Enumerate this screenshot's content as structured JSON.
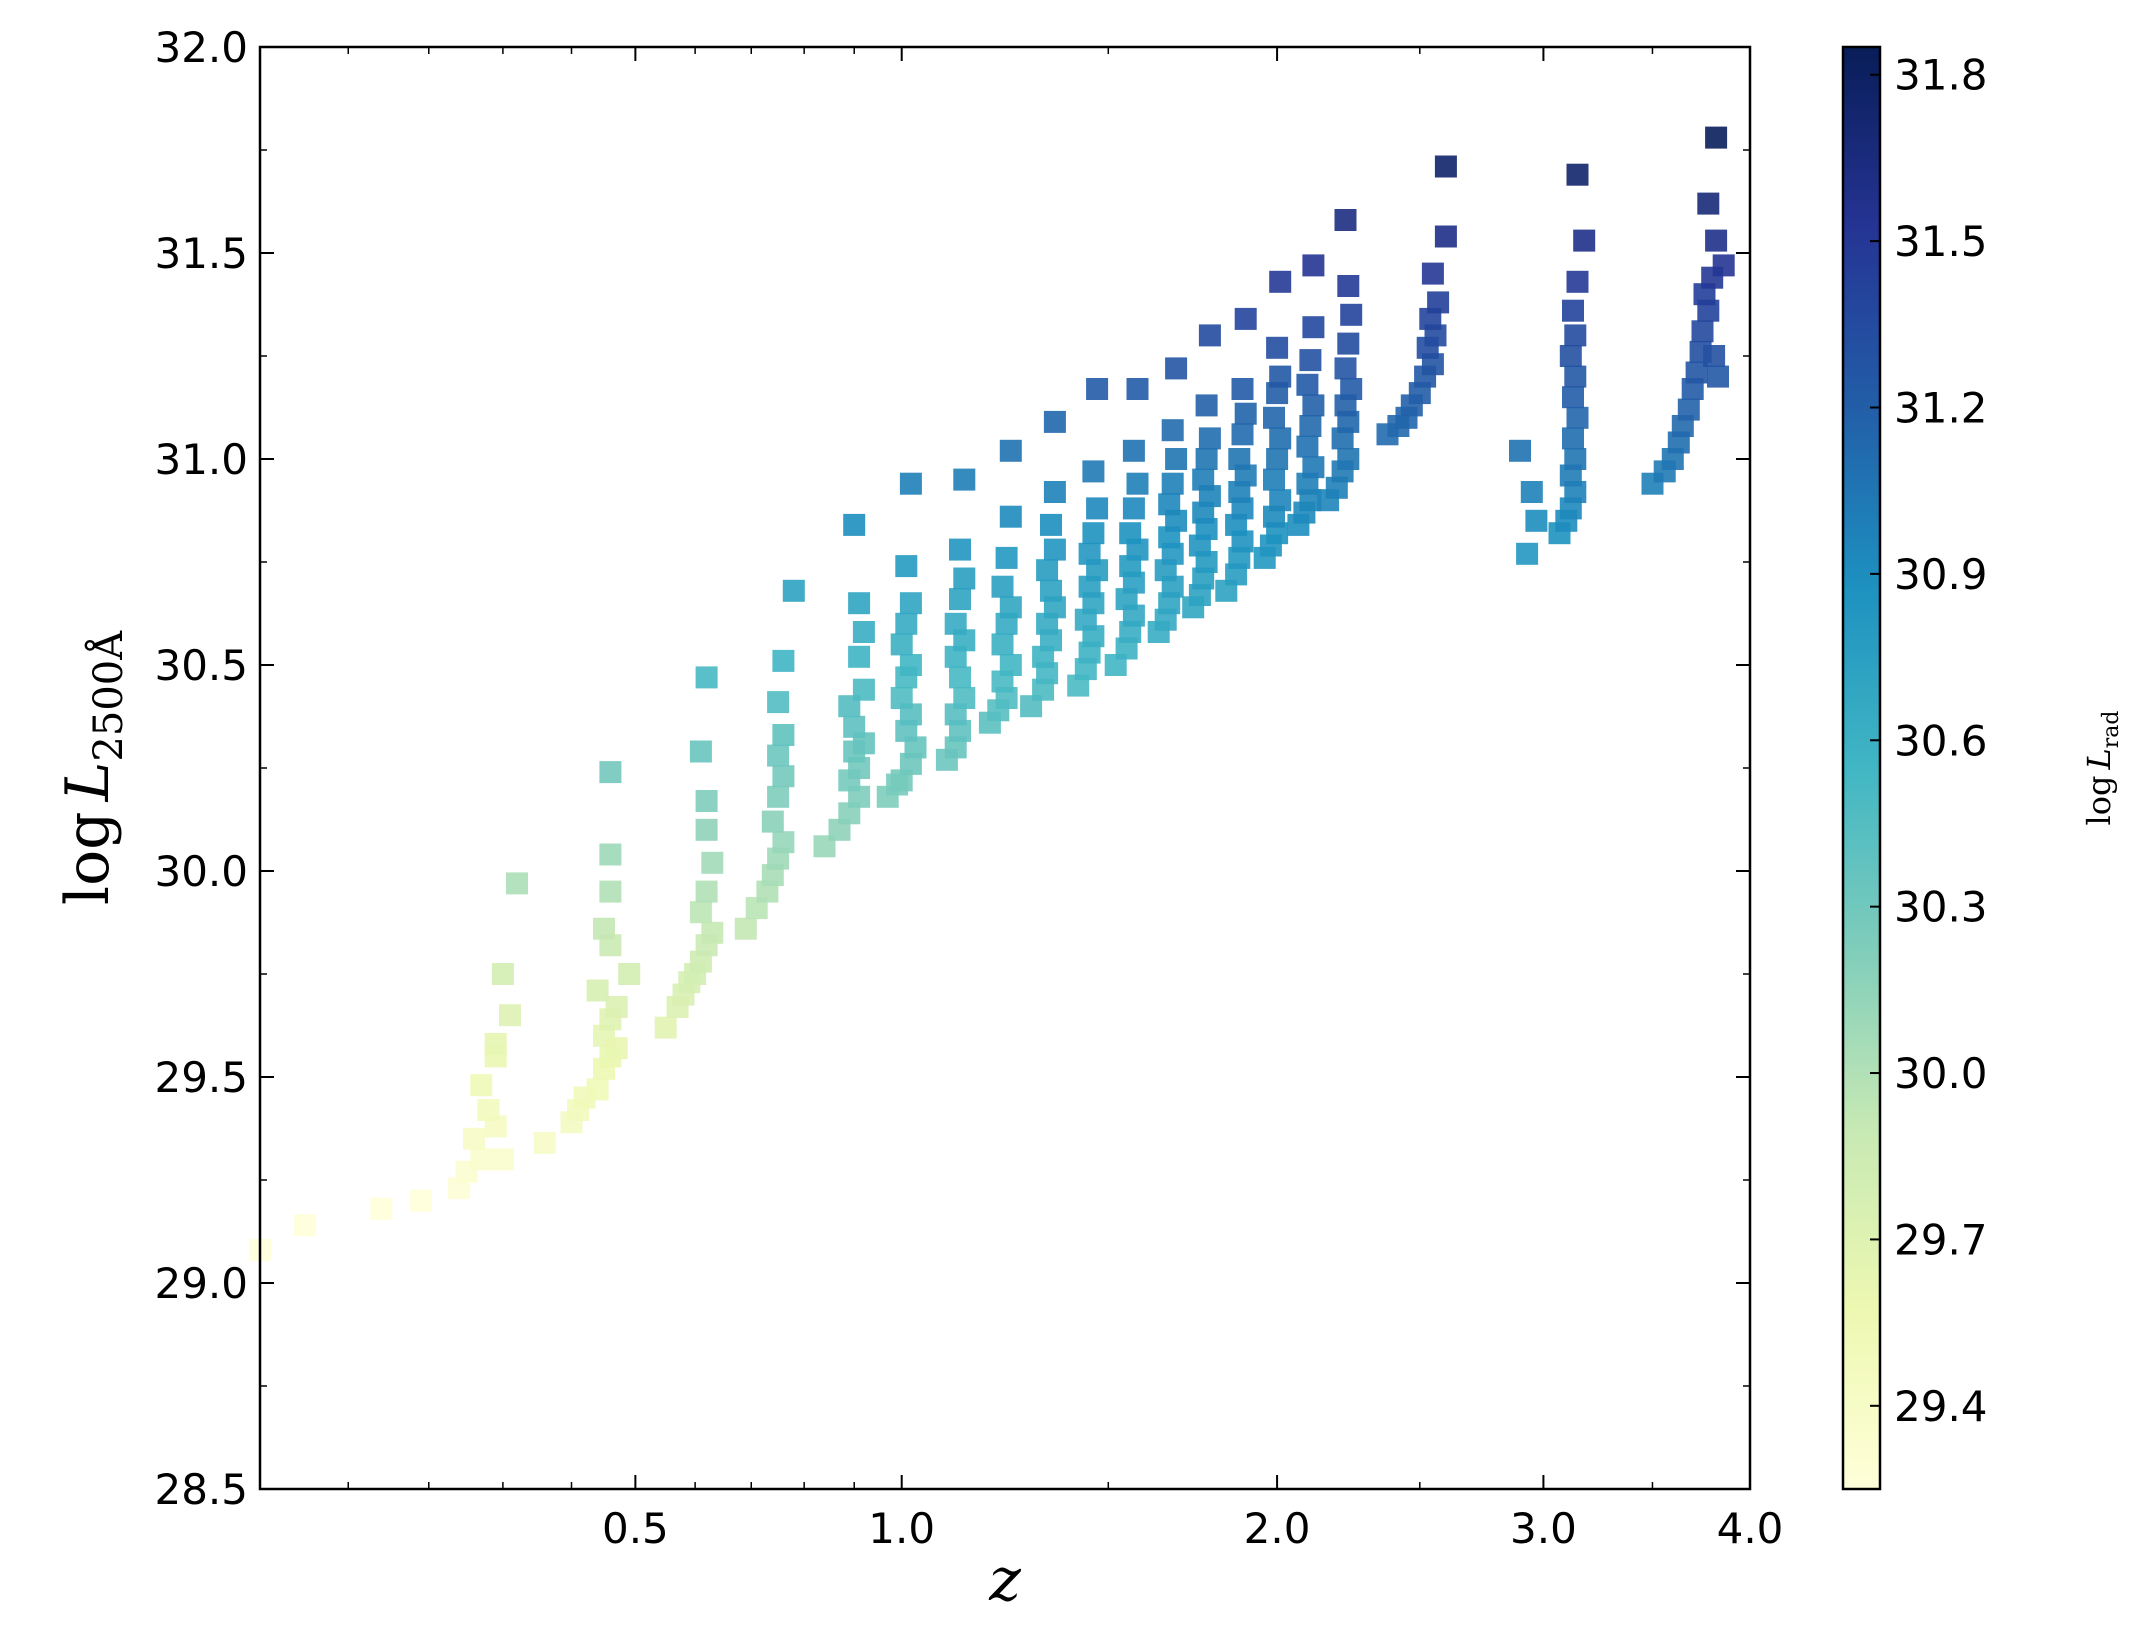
{
  "chart_data": {
    "type": "scatter",
    "marker": "square",
    "xlabel": "z",
    "ylabel": "log L_2500Å",
    "ylabel_parts": {
      "main": "log",
      "var": "L",
      "sub": "2500Å"
    },
    "colorbar_label_parts": {
      "main": "log",
      "var": "L",
      "sub": "rad"
    },
    "x_scale": "log(1+z)",
    "xlim": [
      0.0,
      4.0
    ],
    "ylim": [
      28.5,
      32.0
    ],
    "x_ticks": [
      0.5,
      1.0,
      2.0,
      3.0,
      4.0
    ],
    "x_tick_labels": [
      "0.5",
      "1.0",
      "2.0",
      "3.0",
      "4.0"
    ],
    "y_ticks": [
      28.5,
      29.0,
      29.5,
      30.0,
      30.5,
      31.0,
      31.5,
      32.0
    ],
    "y_tick_labels": [
      "28.5",
      "29.0",
      "29.5",
      "30.0",
      "30.5",
      "31.0",
      "31.5",
      "32.0"
    ],
    "colorbar": {
      "range": [
        29.25,
        31.85
      ],
      "ticks": [
        29.4,
        29.7,
        30.0,
        30.3,
        30.6,
        30.9,
        31.2,
        31.5,
        31.8
      ],
      "tick_labels": [
        "29.4",
        "29.7",
        "30.0",
        "30.3",
        "30.6",
        "30.9",
        "31.2",
        "31.5",
        "31.8"
      ],
      "colormap": [
        "#ffffd9",
        "#edf8b1",
        "#c7e9b4",
        "#7fcdbb",
        "#41b6c4",
        "#1d91c0",
        "#225ea8",
        "#253494",
        "#081d58"
      ]
    },
    "grid": false,
    "legend": "none",
    "points": [
      [
        0.0,
        29.08
      ],
      [
        0.05,
        29.14
      ],
      [
        0.14,
        29.18
      ],
      [
        0.19,
        29.2
      ],
      [
        0.24,
        29.23
      ],
      [
        0.25,
        29.27
      ],
      [
        0.27,
        29.3
      ],
      [
        0.26,
        29.35
      ],
      [
        0.29,
        29.38
      ],
      [
        0.28,
        29.42
      ],
      [
        0.27,
        29.48
      ],
      [
        0.29,
        29.55
      ],
      [
        0.29,
        29.58
      ],
      [
        0.31,
        29.65
      ],
      [
        0.3,
        29.75
      ],
      [
        0.32,
        29.97
      ],
      [
        0.3,
        29.3
      ],
      [
        0.36,
        29.34
      ],
      [
        0.4,
        29.39
      ],
      [
        0.41,
        29.42
      ],
      [
        0.42,
        29.45
      ],
      [
        0.44,
        29.47
      ],
      [
        0.45,
        29.52
      ],
      [
        0.46,
        29.55
      ],
      [
        0.45,
        29.6
      ],
      [
        0.47,
        29.57
      ],
      [
        0.46,
        29.64
      ],
      [
        0.47,
        29.67
      ],
      [
        0.44,
        29.71
      ],
      [
        0.49,
        29.75
      ],
      [
        0.46,
        29.82
      ],
      [
        0.45,
        29.86
      ],
      [
        0.46,
        29.95
      ],
      [
        0.46,
        30.04
      ],
      [
        0.46,
        30.24
      ],
      [
        0.55,
        29.62
      ],
      [
        0.57,
        29.67
      ],
      [
        0.58,
        29.7
      ],
      [
        0.59,
        29.73
      ],
      [
        0.6,
        29.75
      ],
      [
        0.61,
        29.78
      ],
      [
        0.62,
        29.82
      ],
      [
        0.63,
        29.85
      ],
      [
        0.61,
        29.9
      ],
      [
        0.62,
        29.95
      ],
      [
        0.63,
        30.02
      ],
      [
        0.62,
        30.1
      ],
      [
        0.62,
        30.17
      ],
      [
        0.61,
        30.29
      ],
      [
        0.62,
        30.47
      ],
      [
        0.69,
        29.86
      ],
      [
        0.71,
        29.91
      ],
      [
        0.73,
        29.95
      ],
      [
        0.74,
        29.99
      ],
      [
        0.75,
        30.03
      ],
      [
        0.76,
        30.07
      ],
      [
        0.74,
        30.12
      ],
      [
        0.75,
        30.18
      ],
      [
        0.76,
        30.23
      ],
      [
        0.75,
        30.28
      ],
      [
        0.76,
        30.33
      ],
      [
        0.75,
        30.41
      ],
      [
        0.76,
        30.51
      ],
      [
        0.78,
        30.68
      ],
      [
        0.84,
        30.06
      ],
      [
        0.87,
        30.1
      ],
      [
        0.89,
        30.14
      ],
      [
        0.91,
        30.18
      ],
      [
        0.89,
        30.22
      ],
      [
        0.91,
        30.25
      ],
      [
        0.9,
        30.29
      ],
      [
        0.92,
        30.31
      ],
      [
        0.9,
        30.35
      ],
      [
        0.89,
        30.4
      ],
      [
        0.92,
        30.44
      ],
      [
        0.91,
        30.52
      ],
      [
        0.92,
        30.58
      ],
      [
        0.91,
        30.65
      ],
      [
        0.9,
        30.84
      ],
      [
        0.97,
        30.18
      ],
      [
        0.99,
        30.21
      ],
      [
        1.0,
        30.22
      ],
      [
        1.02,
        30.26
      ],
      [
        1.03,
        30.3
      ],
      [
        1.01,
        30.34
      ],
      [
        1.02,
        30.38
      ],
      [
        1.0,
        30.42
      ],
      [
        1.01,
        30.47
      ],
      [
        1.02,
        30.5
      ],
      [
        1.0,
        30.55
      ],
      [
        1.01,
        30.6
      ],
      [
        1.02,
        30.65
      ],
      [
        1.01,
        30.74
      ],
      [
        1.02,
        30.94
      ],
      [
        1.1,
        30.27
      ],
      [
        1.12,
        30.3
      ],
      [
        1.13,
        30.34
      ],
      [
        1.12,
        30.38
      ],
      [
        1.14,
        30.42
      ],
      [
        1.13,
        30.47
      ],
      [
        1.12,
        30.52
      ],
      [
        1.14,
        30.56
      ],
      [
        1.12,
        30.6
      ],
      [
        1.13,
        30.66
      ],
      [
        1.14,
        30.71
      ],
      [
        1.13,
        30.78
      ],
      [
        1.14,
        30.95
      ],
      [
        1.2,
        30.36
      ],
      [
        1.22,
        30.39
      ],
      [
        1.24,
        30.42
      ],
      [
        1.23,
        30.46
      ],
      [
        1.25,
        30.5
      ],
      [
        1.23,
        30.55
      ],
      [
        1.24,
        30.6
      ],
      [
        1.25,
        30.64
      ],
      [
        1.23,
        30.69
      ],
      [
        1.24,
        30.76
      ],
      [
        1.25,
        30.86
      ],
      [
        1.25,
        31.02
      ],
      [
        1.3,
        30.4
      ],
      [
        1.33,
        30.44
      ],
      [
        1.34,
        30.48
      ],
      [
        1.33,
        30.52
      ],
      [
        1.35,
        30.56
      ],
      [
        1.34,
        30.6
      ],
      [
        1.36,
        30.64
      ],
      [
        1.35,
        30.68
      ],
      [
        1.34,
        30.73
      ],
      [
        1.36,
        30.78
      ],
      [
        1.35,
        30.84
      ],
      [
        1.36,
        30.92
      ],
      [
        1.36,
        31.09
      ],
      [
        1.42,
        30.45
      ],
      [
        1.44,
        30.49
      ],
      [
        1.45,
        30.53
      ],
      [
        1.46,
        30.57
      ],
      [
        1.44,
        30.61
      ],
      [
        1.46,
        30.65
      ],
      [
        1.45,
        30.69
      ],
      [
        1.47,
        30.73
      ],
      [
        1.45,
        30.77
      ],
      [
        1.46,
        30.82
      ],
      [
        1.47,
        30.88
      ],
      [
        1.46,
        30.97
      ],
      [
        1.47,
        31.17
      ],
      [
        1.52,
        30.5
      ],
      [
        1.55,
        30.54
      ],
      [
        1.56,
        30.58
      ],
      [
        1.57,
        30.62
      ],
      [
        1.55,
        30.66
      ],
      [
        1.57,
        30.7
      ],
      [
        1.56,
        30.74
      ],
      [
        1.58,
        30.78
      ],
      [
        1.56,
        30.82
      ],
      [
        1.57,
        30.88
      ],
      [
        1.58,
        30.94
      ],
      [
        1.57,
        31.02
      ],
      [
        1.58,
        31.17
      ],
      [
        1.64,
        30.58
      ],
      [
        1.66,
        30.61
      ],
      [
        1.67,
        30.65
      ],
      [
        1.68,
        30.69
      ],
      [
        1.66,
        30.73
      ],
      [
        1.68,
        30.77
      ],
      [
        1.67,
        30.81
      ],
      [
        1.69,
        30.85
      ],
      [
        1.67,
        30.89
      ],
      [
        1.68,
        30.94
      ],
      [
        1.69,
        31.0
      ],
      [
        1.68,
        31.07
      ],
      [
        1.69,
        31.22
      ],
      [
        1.74,
        30.64
      ],
      [
        1.76,
        30.67
      ],
      [
        1.77,
        30.71
      ],
      [
        1.78,
        30.75
      ],
      [
        1.76,
        30.79
      ],
      [
        1.78,
        30.83
      ],
      [
        1.77,
        30.87
      ],
      [
        1.79,
        30.91
      ],
      [
        1.77,
        30.95
      ],
      [
        1.78,
        31.0
      ],
      [
        1.79,
        31.05
      ],
      [
        1.78,
        31.13
      ],
      [
        1.79,
        31.3
      ],
      [
        1.84,
        30.68
      ],
      [
        1.87,
        30.72
      ],
      [
        1.88,
        30.76
      ],
      [
        1.89,
        30.8
      ],
      [
        1.87,
        30.84
      ],
      [
        1.89,
        30.88
      ],
      [
        1.88,
        30.92
      ],
      [
        1.9,
        30.96
      ],
      [
        1.88,
        31.0
      ],
      [
        1.89,
        31.06
      ],
      [
        1.9,
        31.11
      ],
      [
        1.89,
        31.17
      ],
      [
        1.9,
        31.34
      ],
      [
        1.96,
        30.76
      ],
      [
        1.98,
        30.79
      ],
      [
        2.0,
        30.82
      ],
      [
        1.99,
        30.86
      ],
      [
        2.01,
        30.9
      ],
      [
        1.99,
        30.95
      ],
      [
        2.0,
        31.0
      ],
      [
        2.01,
        31.05
      ],
      [
        1.99,
        31.1
      ],
      [
        2.0,
        31.16
      ],
      [
        2.01,
        31.2
      ],
      [
        2.0,
        31.27
      ],
      [
        2.01,
        31.43
      ],
      [
        2.07,
        30.84
      ],
      [
        2.09,
        30.87
      ],
      [
        2.11,
        30.9
      ],
      [
        2.1,
        30.94
      ],
      [
        2.12,
        30.98
      ],
      [
        2.1,
        31.03
      ],
      [
        2.11,
        31.08
      ],
      [
        2.12,
        31.13
      ],
      [
        2.1,
        31.18
      ],
      [
        2.11,
        31.24
      ],
      [
        2.12,
        31.32
      ],
      [
        2.12,
        31.47
      ],
      [
        2.17,
        30.9
      ],
      [
        2.2,
        30.93
      ],
      [
        2.22,
        30.97
      ],
      [
        2.24,
        31.0
      ],
      [
        2.22,
        31.05
      ],
      [
        2.24,
        31.09
      ],
      [
        2.23,
        31.13
      ],
      [
        2.25,
        31.17
      ],
      [
        2.23,
        31.22
      ],
      [
        2.24,
        31.28
      ],
      [
        2.25,
        31.35
      ],
      [
        2.24,
        31.42
      ],
      [
        2.23,
        31.58
      ],
      [
        2.38,
        31.06
      ],
      [
        2.42,
        31.08
      ],
      [
        2.45,
        31.1
      ],
      [
        2.47,
        31.13
      ],
      [
        2.5,
        31.16
      ],
      [
        2.52,
        31.2
      ],
      [
        2.55,
        31.23
      ],
      [
        2.53,
        31.27
      ],
      [
        2.56,
        31.3
      ],
      [
        2.54,
        31.34
      ],
      [
        2.57,
        31.38
      ],
      [
        2.55,
        31.45
      ],
      [
        2.6,
        31.54
      ],
      [
        2.6,
        31.71
      ],
      [
        2.9,
        31.02
      ],
      [
        2.95,
        30.92
      ],
      [
        2.97,
        30.85
      ],
      [
        2.93,
        30.77
      ],
      [
        3.07,
        30.82
      ],
      [
        3.1,
        30.85
      ],
      [
        3.12,
        30.88
      ],
      [
        3.14,
        30.92
      ],
      [
        3.12,
        30.96
      ],
      [
        3.14,
        31.0
      ],
      [
        3.13,
        31.05
      ],
      [
        3.15,
        31.1
      ],
      [
        3.13,
        31.15
      ],
      [
        3.14,
        31.2
      ],
      [
        3.12,
        31.25
      ],
      [
        3.14,
        31.3
      ],
      [
        3.13,
        31.36
      ],
      [
        3.15,
        31.43
      ],
      [
        3.18,
        31.53
      ],
      [
        3.15,
        31.69
      ],
      [
        3.5,
        30.94
      ],
      [
        3.56,
        30.97
      ],
      [
        3.6,
        31.0
      ],
      [
        3.63,
        31.04
      ],
      [
        3.65,
        31.08
      ],
      [
        3.68,
        31.12
      ],
      [
        3.7,
        31.17
      ],
      [
        3.72,
        31.21
      ],
      [
        3.74,
        31.26
      ],
      [
        3.75,
        31.31
      ],
      [
        3.78,
        31.36
      ],
      [
        3.76,
        31.4
      ],
      [
        3.8,
        31.44
      ],
      [
        3.86,
        31.47
      ],
      [
        3.82,
        31.53
      ],
      [
        3.78,
        31.62
      ],
      [
        3.82,
        31.78
      ],
      [
        3.83,
        31.2
      ],
      [
        3.81,
        31.25
      ]
    ]
  }
}
